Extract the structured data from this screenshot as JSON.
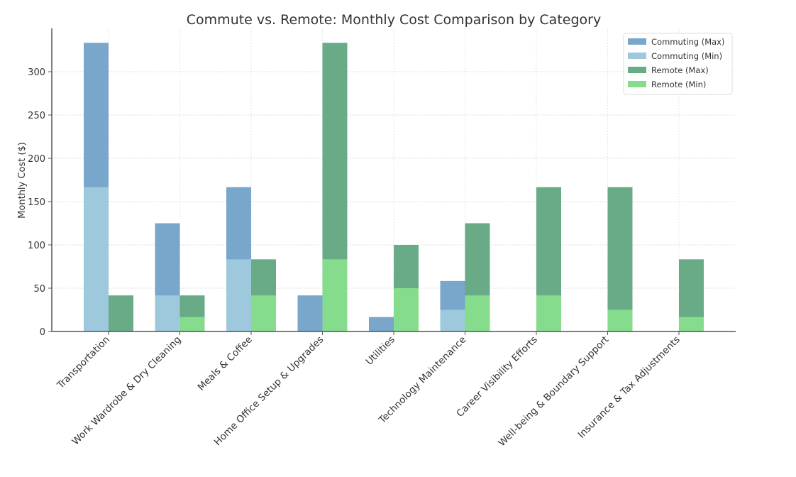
{
  "chart_data": {
    "type": "bar",
    "title": "Commute vs. Remote: Monthly Cost Comparison by Category",
    "xlabel": "",
    "ylabel": "Monthly Cost ($)",
    "ylim": [
      0,
      350
    ],
    "yticks": [
      0,
      50,
      100,
      150,
      200,
      250,
      300
    ],
    "grid": true,
    "legend_position": "top-right",
    "categories": [
      "Transportation",
      "Work Wardrobe & Dry Cleaning",
      "Meals & Coffee",
      "Home Office Setup & Upgrades",
      "Utilities",
      "Technology Maintenance",
      "Career Visibility Efforts",
      "Well-being & Boundary Support",
      "Insurance & Tax Adjustments"
    ],
    "series": [
      {
        "name": "Commuting (Max)",
        "group": "commute",
        "color": "#79a6cb",
        "values": [
          333.33,
          125,
          166.67,
          41.67,
          16.67,
          58.33,
          0,
          0,
          0
        ]
      },
      {
        "name": "Commuting (Min)",
        "group": "commute",
        "color": "#9ec9dc",
        "values": [
          166.67,
          41.67,
          83.33,
          0,
          0,
          25,
          0,
          0,
          0
        ]
      },
      {
        "name": "Remote (Max)",
        "group": "remote",
        "color": "#68ab86",
        "values": [
          41.67,
          41.67,
          83.33,
          333.33,
          100,
          125,
          166.67,
          166.67,
          83.33
        ]
      },
      {
        "name": "Remote (Min)",
        "group": "remote",
        "color": "#86dc8d",
        "values": [
          0,
          16.67,
          41.67,
          83.33,
          50,
          41.67,
          41.67,
          25,
          16.67
        ]
      }
    ]
  }
}
